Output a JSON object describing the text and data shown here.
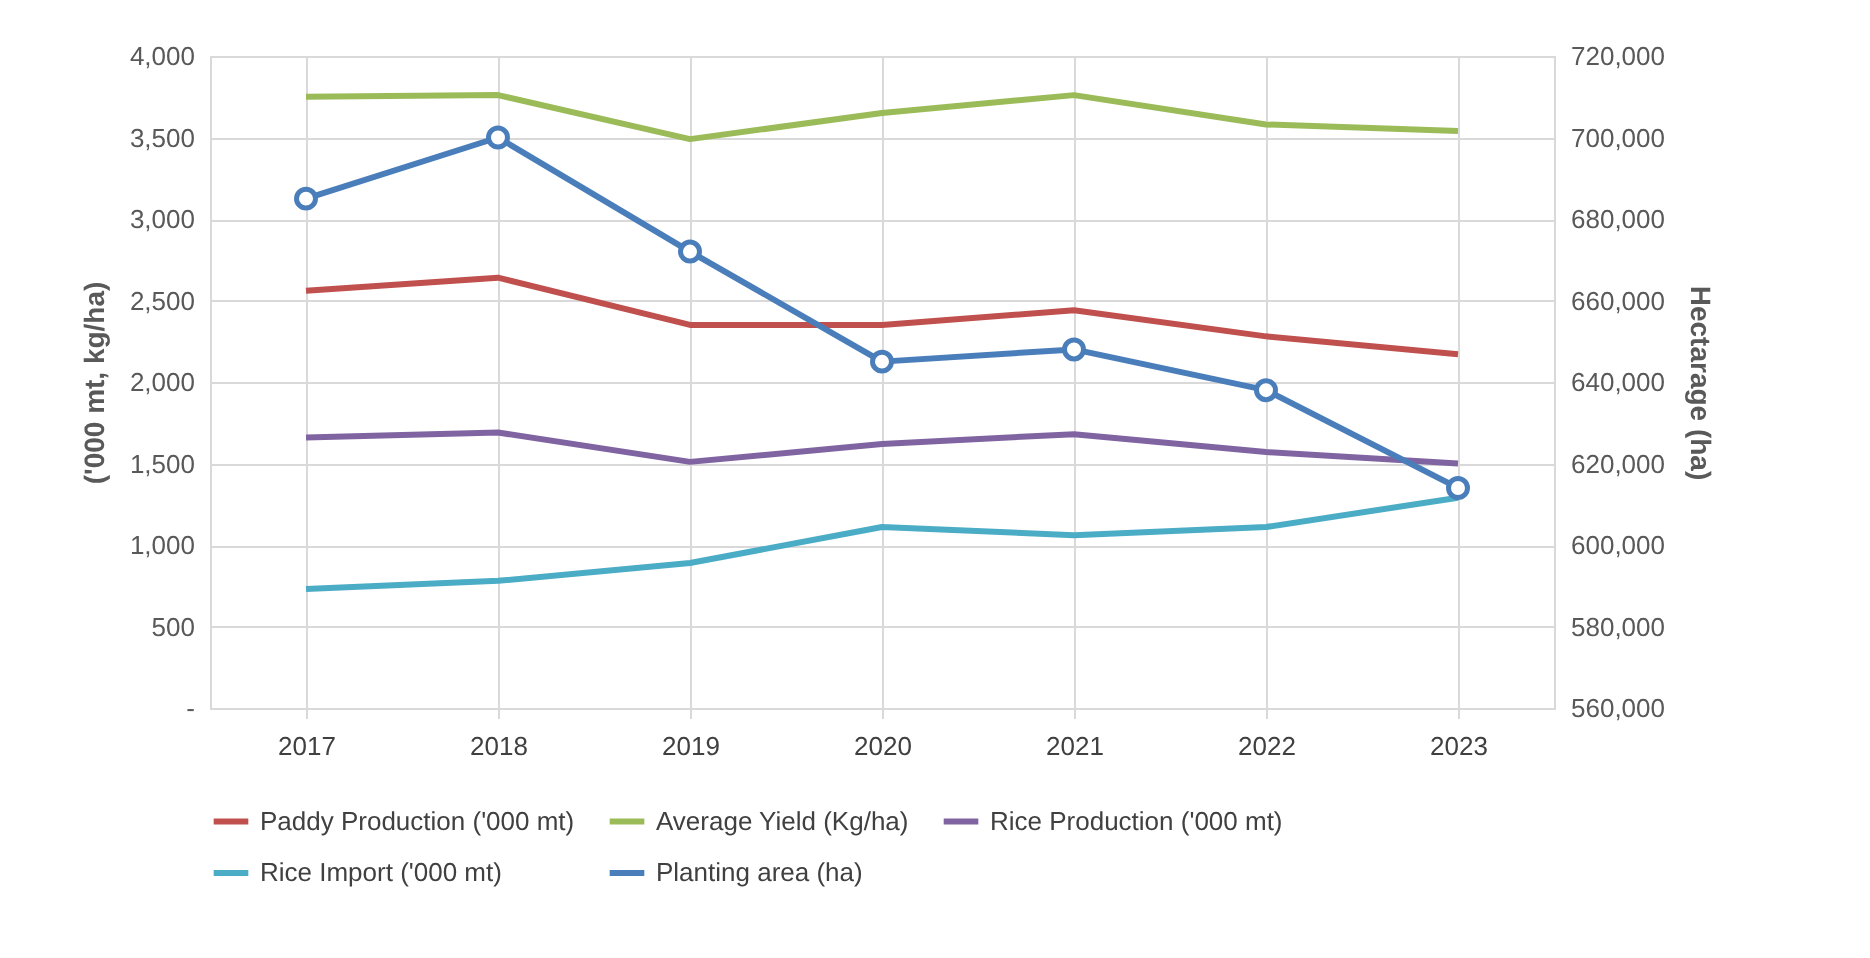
{
  "chart_data": {
    "type": "line",
    "categories": [
      "2017",
      "2018",
      "2019",
      "2020",
      "2021",
      "2022",
      "2023"
    ],
    "ylabel": "('000 mt, kg/ha)",
    "y2label": "Hectarage (ha)",
    "ylim": [
      0,
      4000
    ],
    "yticks": [
      {
        "value": 0,
        "label": "-"
      },
      {
        "value": 500,
        "label": "500"
      },
      {
        "value": 1000,
        "label": "1,000"
      },
      {
        "value": 1500,
        "label": "1,500"
      },
      {
        "value": 2000,
        "label": "2,000"
      },
      {
        "value": 2500,
        "label": "2,500"
      },
      {
        "value": 3000,
        "label": "3,000"
      },
      {
        "value": 3500,
        "label": "3,500"
      },
      {
        "value": 4000,
        "label": "4,000"
      }
    ],
    "y2lim": [
      560000,
      720000
    ],
    "y2ticks": [
      {
        "value": 560000,
        "label": "560,000"
      },
      {
        "value": 580000,
        "label": "580,000"
      },
      {
        "value": 600000,
        "label": "600,000"
      },
      {
        "value": 620000,
        "label": "620,000"
      },
      {
        "value": 640000,
        "label": "640,000"
      },
      {
        "value": 660000,
        "label": "660,000"
      },
      {
        "value": 680000,
        "label": "680,000"
      },
      {
        "value": 700000,
        "label": "700,000"
      },
      {
        "value": 720000,
        "label": "720,000"
      }
    ],
    "grid": true,
    "legend": "bottom",
    "series": [
      {
        "name": "Paddy Production ('000 mt)",
        "color": "#c0504d",
        "values": [
          2560,
          2640,
          2350,
          2350,
          2440,
          2280,
          2170
        ]
      },
      {
        "name": "Average Yield (Kg/ha)",
        "color": "#9bbb59",
        "values": [
          3750,
          3760,
          3490,
          3650,
          3760,
          3580,
          3540
        ]
      },
      {
        "name": "Rice Production ('000 mt)",
        "color": "#8064a2",
        "values": [
          1660,
          1690,
          1510,
          1620,
          1680,
          1570,
          1500
        ]
      },
      {
        "name": "Rice Import ('000 mt)",
        "color": "#4bacc6",
        "values": [
          730,
          780,
          890,
          1110,
          1060,
          1110,
          1290
        ]
      },
      {
        "name": "Planting area (ha)",
        "color": "#4a7ebb",
        "axis": "y2",
        "marker": "circle",
        "values": [
          685000,
          700000,
          672000,
          645000,
          648000,
          638000,
          614000
        ]
      }
    ]
  }
}
